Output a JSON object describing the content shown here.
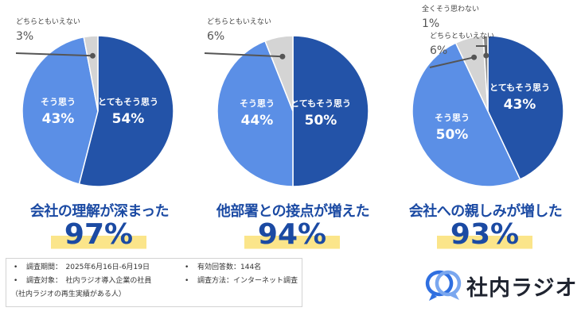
{
  "colors": {
    "strong": "#2353a8",
    "agree": "#5b8fe6",
    "neutral": "#d4d4d4",
    "disagree": "#8a8a8a",
    "accent": "#1b4aa3",
    "highlight": "#fbe58a"
  },
  "chart_data": [
    {
      "type": "pie",
      "title": "会社の理解が深まった",
      "headline_value": "97%",
      "slices": [
        {
          "label": "とてもそう思う",
          "value": 54,
          "value_text": "54%"
        },
        {
          "label": "そう思う",
          "value": 43,
          "value_text": "43%"
        },
        {
          "label": "どちらともいえない",
          "value": 3,
          "value_text": "3%"
        }
      ]
    },
    {
      "type": "pie",
      "title": "他部署との接点が増えた",
      "headline_value": "94%",
      "slices": [
        {
          "label": "とてもそう思う",
          "value": 50,
          "value_text": "50%"
        },
        {
          "label": "そう思う",
          "value": 44,
          "value_text": "44%"
        },
        {
          "label": "どちらともいえない",
          "value": 6,
          "value_text": "6%"
        }
      ]
    },
    {
      "type": "pie",
      "title": "会社への親しみが増した",
      "headline_value": "93%",
      "slices": [
        {
          "label": "とてもそう思う",
          "value": 43,
          "value_text": "43%"
        },
        {
          "label": "そう思う",
          "value": 50,
          "value_text": "50%"
        },
        {
          "label": "どちらともいえない",
          "value": 6,
          "value_text": "6%"
        },
        {
          "label": "全くそう思わない",
          "value": 1,
          "value_text": "1%"
        }
      ]
    }
  ],
  "survey": {
    "period": "調査期間：　2025年6月16日-6月19日",
    "respondents": "有効回答数：144名",
    "target": "調査対象：　社内ラジオ導入企業の社員",
    "target_note": "（社内ラジオの再生実績がある人）",
    "method": "調査方法：インターネット調査"
  },
  "brand": {
    "name": "社内ラジオ"
  }
}
